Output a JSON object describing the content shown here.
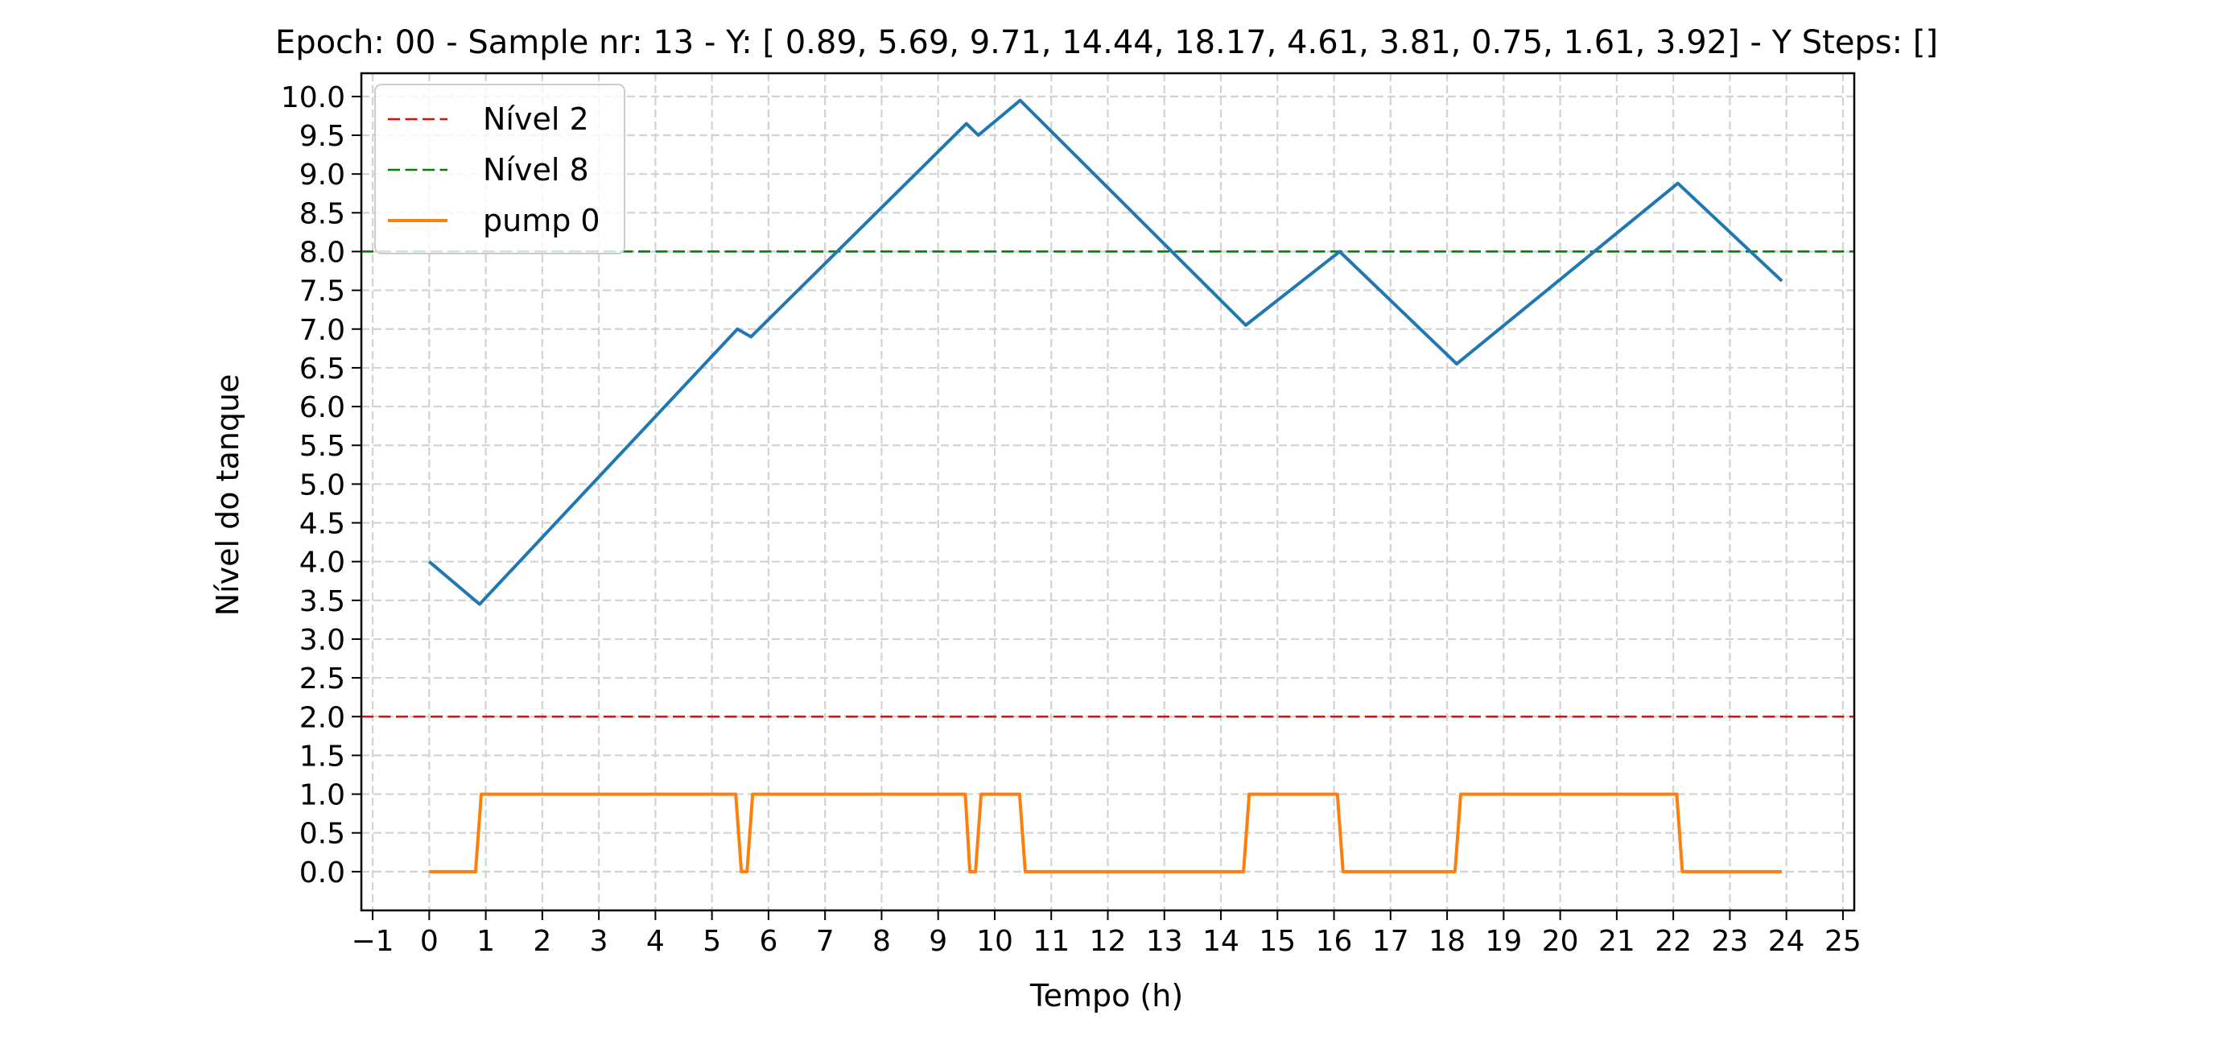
{
  "chart_data": {
    "type": "line",
    "title": "Epoch: 00 - Sample nr: 13 - Y: [ 0.89,  5.69,  9.71, 14.44, 18.17,  4.61,  3.81,  0.75,  1.61,  3.92] - Y Steps: []",
    "xlabel": "Tempo (h)",
    "ylabel": "Nível do tanque",
    "xlim": [
      -1.2,
      25.2
    ],
    "ylim": [
      -0.5,
      10.3
    ],
    "x_ticks": [
      -1,
      0,
      1,
      2,
      3,
      4,
      5,
      6,
      7,
      8,
      9,
      10,
      11,
      12,
      13,
      14,
      15,
      16,
      17,
      18,
      19,
      20,
      21,
      22,
      23,
      24,
      25
    ],
    "x_tick_labels": [
      "−1",
      "0",
      "1",
      "2",
      "3",
      "4",
      "5",
      "6",
      "7",
      "8",
      "9",
      "10",
      "11",
      "12",
      "13",
      "14",
      "15",
      "16",
      "17",
      "18",
      "19",
      "20",
      "21",
      "22",
      "23",
      "24",
      "25"
    ],
    "y_ticks": [
      0.0,
      0.5,
      1.0,
      1.5,
      2.0,
      2.5,
      3.0,
      3.5,
      4.0,
      4.5,
      5.0,
      5.5,
      6.0,
      6.5,
      7.0,
      7.5,
      8.0,
      8.5,
      9.0,
      9.5,
      10.0
    ],
    "y_tick_labels": [
      "0.0",
      "0.5",
      "1.0",
      "1.5",
      "2.0",
      "2.5",
      "3.0",
      "3.5",
      "4.0",
      "4.5",
      "5.0",
      "5.5",
      "6.0",
      "6.5",
      "7.0",
      "7.5",
      "8.0",
      "8.5",
      "9.0",
      "9.5",
      "10.0"
    ],
    "grid": true,
    "legend_position": "upper-left",
    "series": [
      {
        "name": "",
        "color": "#1f77b4",
        "style": "solid",
        "x": [
          0,
          0.89,
          5.45,
          5.69,
          9.5,
          9.71,
          10.45,
          14.44,
          16.1,
          18.17,
          22.08,
          23.92
        ],
        "y": [
          4.0,
          3.45,
          7.0,
          6.9,
          9.65,
          9.5,
          9.95,
          7.05,
          8.0,
          6.55,
          8.88,
          7.62
        ]
      },
      {
        "name": "pump 0",
        "color": "#ff7f0e",
        "style": "solid",
        "x": [
          0,
          0.82,
          0.92,
          5.42,
          5.52,
          5.62,
          5.72,
          9.48,
          9.56,
          9.66,
          9.76,
          10.44,
          10.54,
          14.4,
          14.5,
          16.06,
          16.16,
          18.14,
          18.24,
          22.06,
          22.16,
          23.92
        ],
        "y": [
          0,
          0,
          1,
          1,
          0,
          0,
          1,
          1,
          0,
          0,
          1,
          1,
          0,
          0,
          1,
          1,
          0,
          0,
          1,
          1,
          0,
          0
        ]
      }
    ],
    "hlines": [
      {
        "name": "Nível 2",
        "y": 2,
        "color": "#ff0000",
        "style": "dashed"
      },
      {
        "name": "Nível 8",
        "y": 8,
        "color": "#008000",
        "style": "dashed"
      }
    ],
    "legend": [
      {
        "label": "Nível 2",
        "color": "#ff0000",
        "style": "dashed"
      },
      {
        "label": "Nível 8",
        "color": "#008000",
        "style": "dashed"
      },
      {
        "label": "pump 0",
        "color": "#ff7f0e",
        "style": "solid"
      }
    ]
  }
}
